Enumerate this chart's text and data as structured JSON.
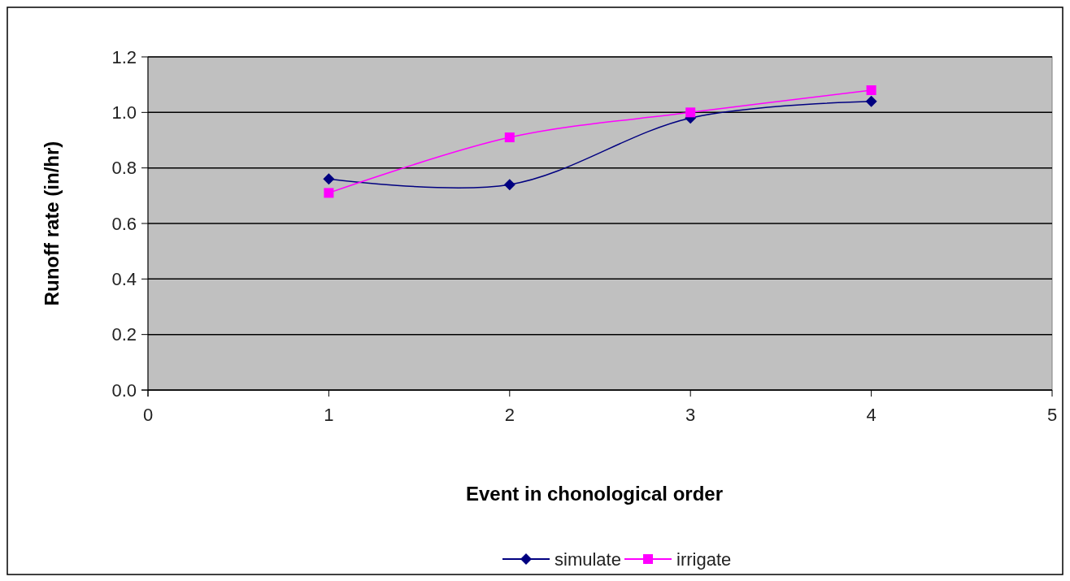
{
  "chart_data": {
    "type": "line",
    "xlabel": "Event in chonological order",
    "ylabel": "Runoff rate (in/hr)",
    "x": [
      1,
      2,
      3,
      4
    ],
    "xlim": [
      0,
      5
    ],
    "xticks": [
      0,
      1,
      2,
      3,
      4,
      5
    ],
    "ylim": [
      0,
      1.2
    ],
    "yticks": [
      {
        "value": 0,
        "label": "0.0"
      },
      {
        "value": 0.2,
        "label": "0.2"
      },
      {
        "value": 0.4,
        "label": "0.4"
      },
      {
        "value": 0.6,
        "label": "0.6"
      },
      {
        "value": 0.8,
        "label": "0.8"
      },
      {
        "value": 1,
        "label": "1.0"
      },
      {
        "value": 1.2,
        "label": "1.2"
      }
    ],
    "grid": "y",
    "legend": "bottom",
    "series": [
      {
        "name": "simulate",
        "color": "#000080",
        "marker": "diamond",
        "values": [
          0.76,
          0.74,
          0.98,
          1.04
        ]
      },
      {
        "name": "irrigate",
        "color": "#ff00ff",
        "marker": "square",
        "values": [
          0.71,
          0.91,
          1.0,
          1.08
        ]
      }
    ]
  }
}
